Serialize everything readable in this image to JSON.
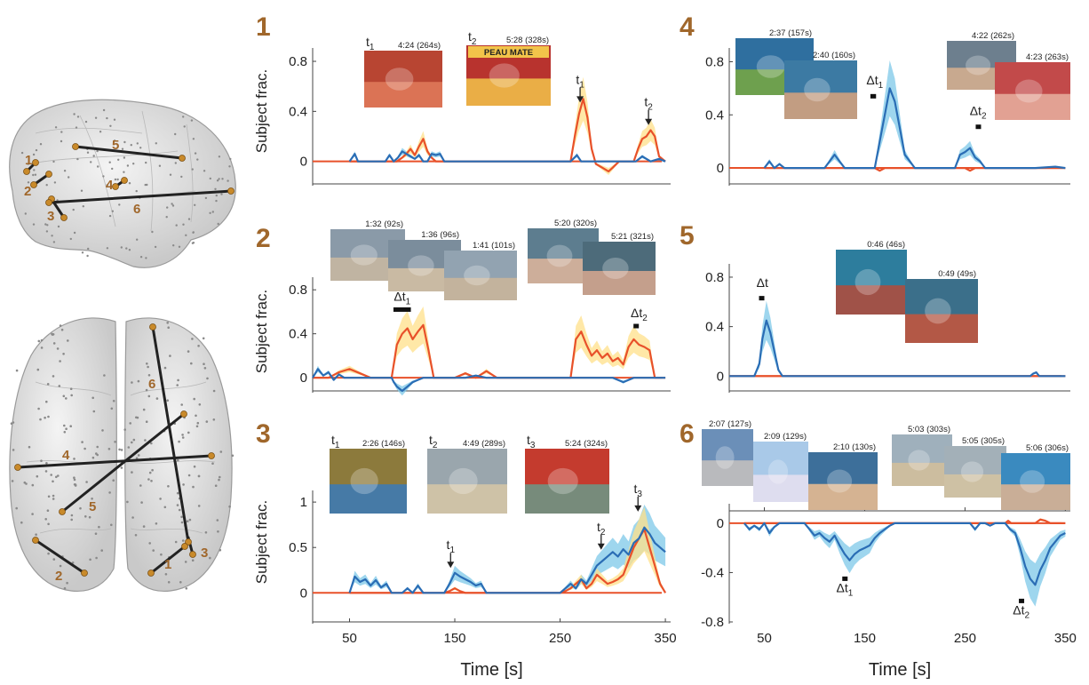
{
  "brain": {
    "sagittal_labels": [
      "1",
      "2",
      "3",
      "4",
      "5",
      "6"
    ],
    "axial_labels": [
      "1",
      "2",
      "3",
      "4",
      "5",
      "6"
    ]
  },
  "colors": {
    "blue_line": "#2a6db5",
    "blue_band": "#7ec8e8",
    "red_line": "#e8512a",
    "red_band": "#ffe08a",
    "panel_number": "#a0672b"
  },
  "chart_data": [
    {
      "id": "1",
      "type": "line",
      "ylabel": "Subject frac.",
      "xlabel": "",
      "xlim": [
        15,
        355
      ],
      "ylim": [
        -0.18,
        0.85
      ],
      "yticks": [
        0,
        0.4,
        0.8
      ],
      "ytick_labels": [
        "0",
        "0.4",
        "0.8"
      ],
      "xticks": [],
      "series": [
        {
          "color": "blue",
          "x": [
            50,
            55,
            58,
            62,
            70,
            84,
            88,
            92,
            96,
            100,
            108,
            112,
            116,
            120,
            124,
            128,
            132,
            136,
            140,
            145,
            148,
            160,
            175,
            260,
            266,
            270,
            276,
            284,
            300,
            322,
            328,
            336,
            344,
            350
          ],
          "y": [
            0,
            0.06,
            0,
            0,
            0,
            0,
            0.05,
            0,
            0.03,
            0.08,
            0.04,
            0.02,
            0.05,
            0,
            0,
            0.06,
            0.05,
            0.06,
            0,
            0,
            0,
            0,
            0,
            0,
            0.05,
            0,
            0,
            0,
            0,
            0,
            0.04,
            0,
            0.02,
            0
          ]
        },
        {
          "color": "red",
          "x": [
            50,
            95,
            100,
            104,
            108,
            112,
            116,
            120,
            124,
            128,
            132,
            260,
            264,
            268,
            272,
            276,
            280,
            284,
            290,
            296,
            300,
            306,
            320,
            324,
            328,
            332,
            336,
            340,
            344,
            350
          ],
          "y": [
            0,
            0,
            0.03,
            0.06,
            0.1,
            0.05,
            0.12,
            0.18,
            0.08,
            0.03,
            0,
            0,
            0.2,
            0.38,
            0.5,
            0.35,
            0.1,
            -0.02,
            -0.05,
            -0.08,
            -0.05,
            0,
            0,
            0.1,
            0.18,
            0.2,
            0.25,
            0.2,
            0.04,
            0
          ]
        }
      ],
      "annotations": [
        {
          "label": "t",
          "sub": "1",
          "x": 269,
          "y": 0.62,
          "arrow": true
        },
        {
          "label": "t",
          "sub": "2",
          "x": 334,
          "y": 0.44,
          "arrow": true
        }
      ],
      "thumbnails": [
        {
          "pre": "t",
          "sub": "1",
          "caption": "4:24 (264s)"
        },
        {
          "pre": "t",
          "sub": "2",
          "caption": "5:28 (328s)",
          "overlay": "PEAU MATE"
        }
      ]
    },
    {
      "id": "2",
      "type": "line",
      "ylabel": "Subject frac.",
      "xlabel": "",
      "xlim": [
        15,
        355
      ],
      "ylim": [
        -0.12,
        0.85
      ],
      "yticks": [
        0,
        0.4,
        0.8
      ],
      "ytick_labels": [
        "0",
        "0.4",
        "0.8"
      ],
      "xticks": [],
      "series": [
        {
          "color": "blue",
          "x": [
            15,
            20,
            25,
            30,
            35,
            40,
            45,
            50,
            55,
            60,
            65,
            70,
            90,
            92,
            95,
            100,
            105,
            110,
            115,
            120,
            140,
            150,
            160,
            170,
            180,
            200,
            225,
            240,
            248,
            255,
            260,
            270,
            285,
            300,
            310,
            320,
            330,
            340,
            350
          ],
          "y": [
            0,
            0.08,
            0.02,
            0.05,
            -0.02,
            0.03,
            0,
            0,
            0,
            0,
            0,
            0,
            0,
            -0.04,
            -0.08,
            -0.12,
            -0.08,
            -0.04,
            -0.02,
            0,
            0,
            0,
            0,
            0.02,
            0,
            0,
            0,
            0,
            0,
            0,
            0,
            0,
            0,
            0,
            -0.04,
            0,
            0,
            0,
            0
          ]
        },
        {
          "color": "red",
          "x": [
            15,
            30,
            40,
            50,
            60,
            70,
            90,
            95,
            100,
            105,
            110,
            115,
            120,
            125,
            130,
            150,
            160,
            170,
            180,
            190,
            200,
            240,
            250,
            260,
            265,
            270,
            275,
            280,
            285,
            290,
            295,
            300,
            305,
            310,
            315,
            320,
            325,
            330,
            335,
            340,
            350
          ],
          "y": [
            0,
            0,
            0.05,
            0.08,
            0.04,
            0,
            0,
            0.3,
            0.4,
            0.45,
            0.35,
            0.42,
            0.48,
            0.25,
            0,
            0,
            0.04,
            0,
            0.06,
            0,
            0,
            0,
            0,
            0,
            0.35,
            0.42,
            0.3,
            0.2,
            0.25,
            0.18,
            0.22,
            0.15,
            0.18,
            0.12,
            0.28,
            0.35,
            0.3,
            0.28,
            0.25,
            0,
            0
          ]
        }
      ],
      "annotations": [
        {
          "label": "Δt",
          "sub": "1",
          "x": 100,
          "y": 0.7,
          "bar_x": [
            93,
            107
          ],
          "bar_y": 0.62
        },
        {
          "label": "Δt",
          "sub": "2",
          "x": 325,
          "y": 0.55,
          "bar_x": [
            321,
            322
          ],
          "bar_y": 0.47
        }
      ],
      "thumbnails": [
        {
          "caption": "1:32 (92s)"
        },
        {
          "caption": "1:36 (96s)"
        },
        {
          "caption": "1:41 (101s)"
        },
        {
          "caption": "5:20 (320s)"
        },
        {
          "caption": "5:21 (321s)"
        }
      ]
    },
    {
      "id": "3",
      "type": "line",
      "ylabel": "Subject frac.",
      "xlabel": "Time [s]",
      "xlim": [
        15,
        355
      ],
      "ylim": [
        -0.32,
        1.05
      ],
      "yticks": [
        0,
        0.5,
        1
      ],
      "ytick_labels": [
        "0",
        "0.5",
        "1"
      ],
      "xticks": [
        50,
        150,
        250,
        350
      ],
      "xtick_labels": [
        "50",
        "150",
        "250",
        "350"
      ],
      "series": [
        {
          "color": "blue",
          "x": [
            50,
            55,
            60,
            65,
            70,
            75,
            80,
            85,
            90,
            100,
            105,
            110,
            115,
            120,
            140,
            145,
            150,
            155,
            160,
            165,
            170,
            175,
            180,
            250,
            255,
            260,
            265,
            270,
            275,
            280,
            285,
            290,
            295,
            300,
            305,
            310,
            315,
            320,
            325,
            330,
            335,
            340,
            345,
            350
          ],
          "y": [
            0,
            0.18,
            0.12,
            0.15,
            0.08,
            0.14,
            0.06,
            0.1,
            0,
            0,
            0.05,
            0,
            0.08,
            0,
            0,
            0.1,
            0.22,
            0.18,
            0.15,
            0.12,
            0.08,
            0.1,
            0,
            0,
            0.05,
            0.1,
            0.05,
            0.15,
            0.1,
            0.2,
            0.3,
            0.35,
            0.4,
            0.45,
            0.4,
            0.48,
            0.42,
            0.55,
            0.6,
            0.72,
            0.65,
            0.55,
            0.5,
            0.45
          ]
        },
        {
          "color": "red",
          "x": [
            50,
            140,
            145,
            150,
            155,
            160,
            250,
            255,
            260,
            265,
            270,
            275,
            280,
            285,
            290,
            295,
            300,
            305,
            310,
            315,
            320,
            325,
            330,
            335,
            340,
            345,
            350
          ],
          "y": [
            0,
            0,
            0.02,
            0.05,
            0.02,
            0,
            0,
            0.02,
            0.05,
            0.1,
            0.15,
            0.05,
            0.1,
            0.2,
            0.15,
            0.1,
            0.12,
            0.15,
            0.2,
            0.35,
            0.5,
            0.6,
            0.7,
            0.5,
            0.3,
            0.1,
            0
          ]
        }
      ],
      "annotations": [
        {
          "label": "t",
          "sub": "1",
          "x": 146,
          "y": 0.48,
          "arrow": true
        },
        {
          "label": "t",
          "sub": "2",
          "x": 289,
          "y": 0.68,
          "arrow": true
        },
        {
          "label": "t",
          "sub": "3",
          "x": 324,
          "y": 1.1,
          "arrow": true
        }
      ],
      "thumbnails": [
        {
          "pre": "t",
          "sub": "1",
          "caption": "2:26 (146s)"
        },
        {
          "pre": "t",
          "sub": "2",
          "caption": "4:49 (289s)"
        },
        {
          "pre": "t",
          "sub": "3",
          "caption": "5:24 (324s)"
        }
      ]
    },
    {
      "id": "4",
      "type": "line",
      "ylabel": "",
      "xlabel": "",
      "xlim": [
        15,
        355
      ],
      "ylim": [
        -0.12,
        0.85
      ],
      "yticks": [
        0,
        0.4,
        0.8
      ],
      "ytick_labels": [
        "0",
        "0.4",
        "0.8"
      ],
      "xticks": [],
      "series": [
        {
          "color": "blue",
          "x": [
            50,
            55,
            60,
            65,
            70,
            80,
            110,
            115,
            120,
            125,
            130,
            160,
            165,
            170,
            175,
            180,
            185,
            190,
            195,
            200,
            240,
            245,
            250,
            255,
            260,
            265,
            270,
            290,
            320,
            340,
            350
          ],
          "y": [
            0,
            0.05,
            0,
            0.03,
            0,
            0,
            0,
            0.05,
            0.1,
            0.05,
            0,
            0,
            0.2,
            0.4,
            0.6,
            0.5,
            0.3,
            0.1,
            0.05,
            0,
            0,
            0.1,
            0.12,
            0.15,
            0.08,
            0.05,
            0,
            0,
            0,
            0.01,
            0
          ]
        },
        {
          "color": "red",
          "x": [
            50,
            160,
            165,
            170,
            175,
            250,
            255,
            260,
            320,
            350
          ],
          "y": [
            0,
            0,
            -0.02,
            0,
            0,
            0,
            -0.02,
            0,
            0,
            0
          ]
        }
      ],
      "annotations": [
        {
          "label": "Δt",
          "sub": "1",
          "x": 160,
          "y": 0.63,
          "bar_x": [
            157,
            160
          ],
          "bar_y": 0.54
        },
        {
          "label": "Δt",
          "sub": "2",
          "x": 263,
          "y": 0.4,
          "bar_x": [
            262,
            263
          ],
          "bar_y": 0.31
        }
      ],
      "thumbnails": [
        {
          "caption": "2:37 (157s)"
        },
        {
          "caption": "2:40 (160s)"
        },
        {
          "caption": "4:22 (262s)"
        },
        {
          "caption": "4:23 (263s)"
        }
      ]
    },
    {
      "id": "5",
      "type": "line",
      "ylabel": "",
      "xlabel": "",
      "xlim": [
        15,
        355
      ],
      "ylim": [
        -0.12,
        0.85
      ],
      "yticks": [
        0,
        0.4,
        0.8
      ],
      "ytick_labels": [
        "0",
        "0.4",
        "0.8"
      ],
      "xticks": [],
      "series": [
        {
          "color": "blue",
          "x": [
            15,
            40,
            45,
            48,
            52,
            56,
            60,
            64,
            68,
            80,
            315,
            318,
            321,
            324,
            350
          ],
          "y": [
            0,
            0,
            0.1,
            0.3,
            0.45,
            0.35,
            0.2,
            0.05,
            0,
            0,
            0,
            0.02,
            0.03,
            0,
            0
          ]
        },
        {
          "color": "red",
          "x": [
            15,
            350
          ],
          "y": [
            0,
            0
          ]
        }
      ],
      "annotations": [
        {
          "label": "Δt",
          "x": 48,
          "y": 0.72,
          "bar_x": [
            46,
            48
          ],
          "bar_y": 0.63
        }
      ],
      "thumbnails": [
        {
          "caption": "0:46 (46s)"
        },
        {
          "caption": "0:49 (49s)"
        }
      ]
    },
    {
      "id": "6",
      "type": "line",
      "ylabel": "",
      "xlabel": "Time [s]",
      "xlim": [
        15,
        355
      ],
      "ylim": [
        -0.8,
        0.1
      ],
      "yticks": [
        0,
        -0.4,
        -0.8
      ],
      "ytick_labels": [
        "0",
        "-0.4",
        "-0.8"
      ],
      "xticks": [
        50,
        150,
        250,
        350
      ],
      "xtick_labels": [
        "50",
        "150",
        "250",
        "350"
      ],
      "series": [
        {
          "color": "blue",
          "x": [
            30,
            35,
            40,
            45,
            50,
            55,
            60,
            65,
            90,
            95,
            100,
            105,
            110,
            115,
            120,
            125,
            130,
            135,
            140,
            145,
            150,
            155,
            160,
            165,
            170,
            175,
            180,
            250,
            255,
            260,
            265,
            270,
            275,
            280,
            285,
            290,
            295,
            300,
            305,
            310,
            315,
            320,
            325,
            330,
            335,
            340,
            345,
            350
          ],
          "y": [
            0,
            -0.05,
            -0.02,
            -0.05,
            0,
            -0.08,
            -0.03,
            0,
            0,
            -0.05,
            -0.1,
            -0.08,
            -0.12,
            -0.15,
            -0.1,
            -0.18,
            -0.25,
            -0.3,
            -0.25,
            -0.22,
            -0.2,
            -0.18,
            -0.12,
            -0.08,
            -0.05,
            -0.02,
            0,
            0,
            0,
            -0.05,
            0,
            0,
            -0.02,
            0,
            0,
            0,
            -0.05,
            -0.08,
            -0.2,
            -0.35,
            -0.45,
            -0.5,
            -0.38,
            -0.3,
            -0.2,
            -0.15,
            -0.1,
            -0.08
          ]
        },
        {
          "color": "red",
          "x": [
            30,
            290,
            293,
            296,
            300,
            320,
            325,
            330,
            335,
            350
          ],
          "y": [
            0,
            0,
            0.02,
            0,
            0,
            0,
            0.03,
            0.02,
            0,
            0
          ]
        }
      ],
      "annotations": [
        {
          "label": "Δt",
          "sub": "1",
          "x": 130,
          "y": -0.56,
          "bar_x": [
            129,
            130
          ],
          "bar_y": -0.45
        },
        {
          "label": "Δt",
          "sub": "2",
          "x": 306,
          "y": -0.74,
          "bar_x": [
            305,
            306
          ],
          "bar_y": -0.63
        }
      ],
      "thumbnails": [
        {
          "caption": "2:07 (127s)"
        },
        {
          "caption": "2:09 (129s)"
        },
        {
          "caption": "2:10 (130s)"
        },
        {
          "caption": "5:03 (303s)"
        },
        {
          "caption": "5:05 (305s)"
        },
        {
          "caption": "5:06 (306s)"
        }
      ]
    }
  ]
}
